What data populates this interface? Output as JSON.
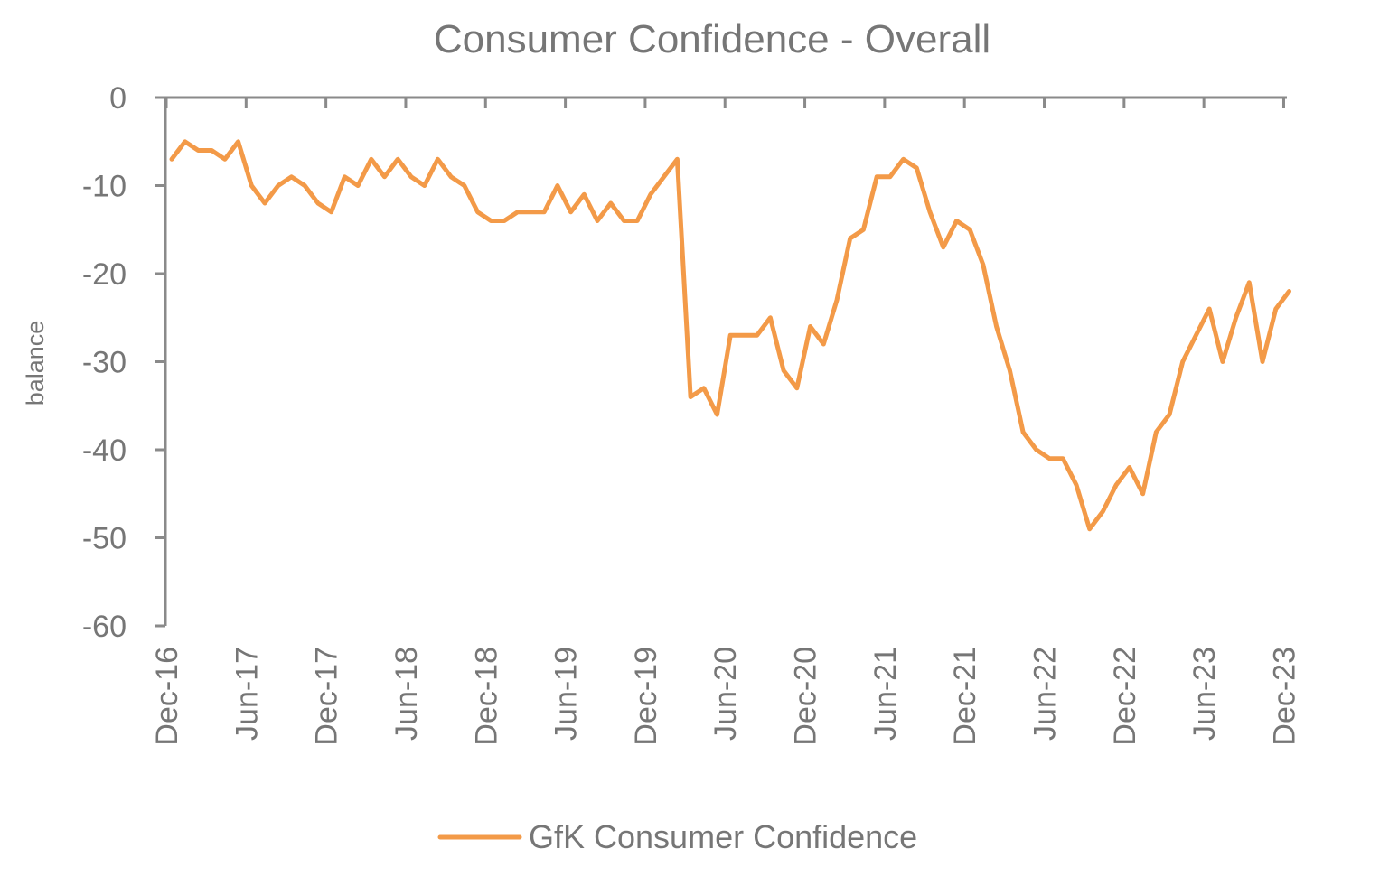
{
  "chart_data": {
    "type": "line",
    "title": "Consumer Confidence - Overall",
    "xlabel": "",
    "ylabel": "balance",
    "ylim": [
      -60,
      0
    ],
    "yticks": [
      0,
      -10,
      -20,
      -30,
      -40,
      -50,
      -60
    ],
    "xticks": [
      "Dec-16",
      "Jun-17",
      "Dec-17",
      "Jun-18",
      "Dec-18",
      "Jun-19",
      "Dec-19",
      "Jun-20",
      "Dec-20",
      "Jun-21",
      "Dec-21",
      "Jun-22",
      "Dec-22",
      "Jun-23",
      "Dec-23"
    ],
    "grid": false,
    "legend_position": "bottom",
    "x": [
      "Dec-16",
      "Jan-17",
      "Feb-17",
      "Mar-17",
      "Apr-17",
      "May-17",
      "Jun-17",
      "Jul-17",
      "Aug-17",
      "Sep-17",
      "Oct-17",
      "Nov-17",
      "Dec-17",
      "Jan-18",
      "Feb-18",
      "Mar-18",
      "Apr-18",
      "May-18",
      "Jun-18",
      "Jul-18",
      "Aug-18",
      "Sep-18",
      "Oct-18",
      "Nov-18",
      "Dec-18",
      "Jan-19",
      "Feb-19",
      "Mar-19",
      "Apr-19",
      "May-19",
      "Jun-19",
      "Jul-19",
      "Aug-19",
      "Sep-19",
      "Oct-19",
      "Nov-19",
      "Dec-19",
      "Jan-20",
      "Feb-20",
      "Mar-20",
      "Apr-20",
      "May-20",
      "Jun-20",
      "Jul-20",
      "Aug-20",
      "Sep-20",
      "Oct-20",
      "Nov-20",
      "Dec-20",
      "Jan-21",
      "Feb-21",
      "Mar-21",
      "Apr-21",
      "May-21",
      "Jun-21",
      "Jul-21",
      "Aug-21",
      "Sep-21",
      "Oct-21",
      "Nov-21",
      "Dec-21",
      "Jan-22",
      "Feb-22",
      "Mar-22",
      "Apr-22",
      "May-22",
      "Jun-22",
      "Jul-22",
      "Aug-22",
      "Sep-22",
      "Oct-22",
      "Nov-22",
      "Dec-22",
      "Jan-23",
      "Feb-23",
      "Mar-23",
      "Apr-23",
      "May-23",
      "Jun-23",
      "Jul-23",
      "Aug-23",
      "Sep-23",
      "Oct-23",
      "Nov-23",
      "Dec-23"
    ],
    "series": [
      {
        "name": "GfK Consumer Confidence",
        "color": "#f39a48",
        "values": [
          -7,
          -5,
          -6,
          -6,
          -7,
          -5,
          -10,
          -12,
          -10,
          -9,
          -10,
          -12,
          -13,
          -9,
          -10,
          -7,
          -9,
          -7,
          -9,
          -10,
          -7,
          -9,
          -10,
          -13,
          -14,
          -14,
          -13,
          -13,
          -13,
          -10,
          -13,
          -11,
          -14,
          -12,
          -14,
          -14,
          -11,
          -9,
          -7,
          -34,
          -33,
          -36,
          -27,
          -27,
          -27,
          -25,
          -31,
          -33,
          -26,
          -28,
          -23,
          -16,
          -15,
          -9,
          -9,
          -7,
          -8,
          -13,
          -17,
          -14,
          -15,
          -19,
          -26,
          -31,
          -38,
          -40,
          -41,
          -41,
          -44,
          -49,
          -47,
          -44,
          -42,
          -45,
          -38,
          -36,
          -30,
          -27,
          -24,
          -30,
          -25,
          -21,
          -30,
          -24,
          -22
        ]
      }
    ]
  }
}
